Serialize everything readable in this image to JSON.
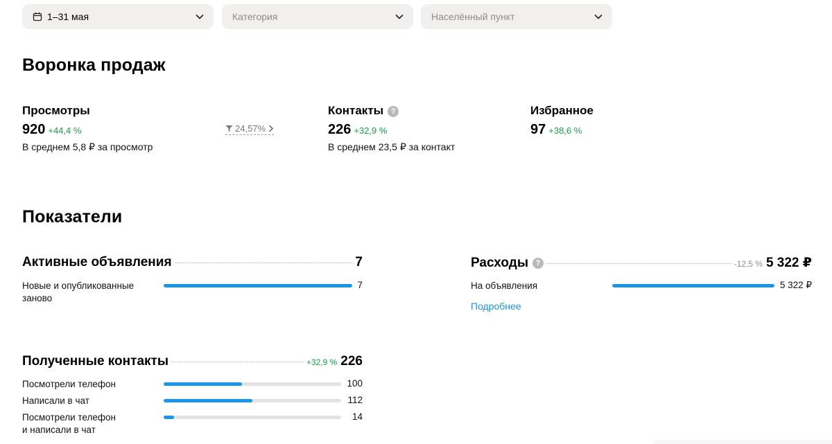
{
  "filters": {
    "period": "1–31 мая",
    "category_placeholder": "Категория",
    "location_placeholder": "Населённый пункт"
  },
  "funnel": {
    "title": "Воронка продаж",
    "views": {
      "title": "Просмотры",
      "value": "920",
      "delta": "+44,4 %",
      "subtitle": "В среднем 5,8 ₽ за просмотр"
    },
    "conversion": "24,57%",
    "contacts": {
      "title": "Контакты",
      "value": "226",
      "delta": "+32,9 %",
      "subtitle": "В среднем 23,5 ₽ за контакт"
    },
    "favorites": {
      "title": "Избранное",
      "value": "97",
      "delta": "+38,6 %"
    }
  },
  "indicators": {
    "title": "Показатели",
    "active_ads": {
      "title": "Активные объявления",
      "total": "7",
      "rows": [
        {
          "label_line1": "Новые и опубликованные",
          "label_line2": "заново",
          "value": "7",
          "fill": 1.0
        }
      ]
    },
    "expenses": {
      "title": "Расходы",
      "delta": "-12,5 %",
      "total": "5 322 ₽",
      "rows": [
        {
          "label": "На объявления",
          "value": "5 322 ₽",
          "fill": 1.0
        }
      ],
      "details_link": "Подробнее"
    },
    "received_contacts": {
      "title": "Полученные контакты",
      "delta": "+32,9 %",
      "total": "226",
      "rows": [
        {
          "label_line1": "Посмотрели телефон",
          "label_line2": "",
          "value": "100",
          "fill": 0.44
        },
        {
          "label_line1": "Написали в чат",
          "label_line2": "",
          "value": "112",
          "fill": 0.5
        },
        {
          "label_line1": "Посмотрели телефон",
          "label_line2": "и написали в чат",
          "value": "14",
          "fill": 0.06
        }
      ]
    }
  }
}
